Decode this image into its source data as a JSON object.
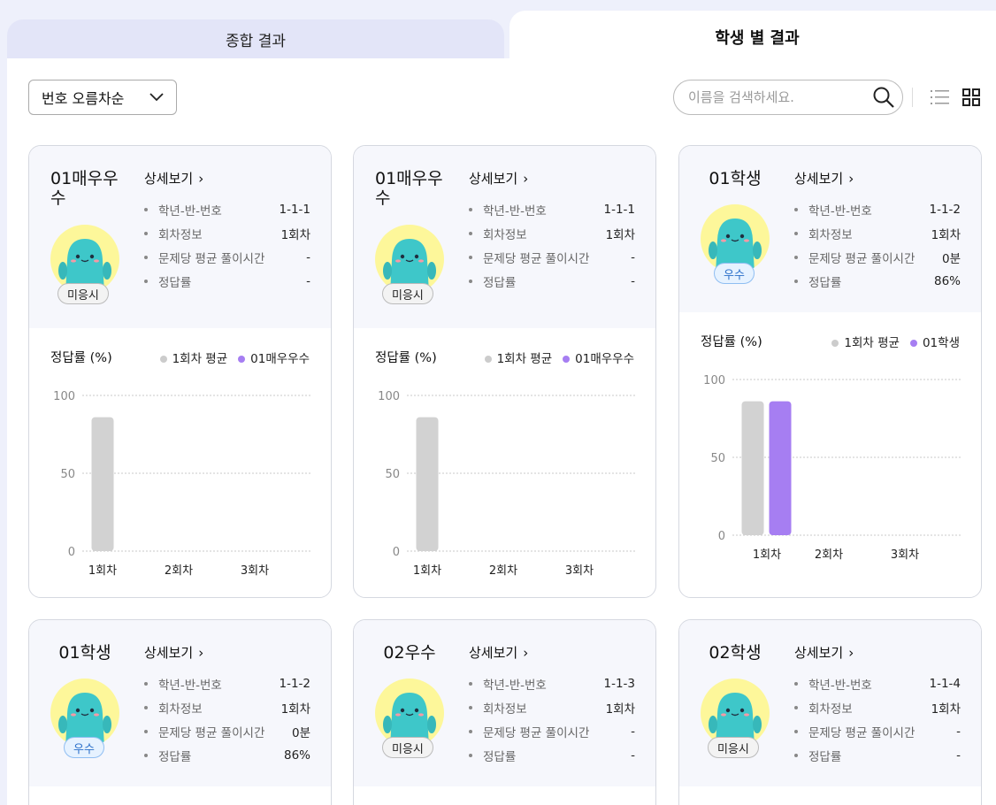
{
  "tabs": {
    "overall": "종합 결과",
    "student": "학생 별 결과"
  },
  "toolbar": {
    "sort_value": "번호 오름차순",
    "search_placeholder": "이름을 검색하세요."
  },
  "colors": {
    "avg_bar": "#d2d2d2",
    "student_bar": "#a67ef2",
    "avg_dot": "#cccccc",
    "student_dot": "#a67ef2"
  },
  "labels": {
    "detail": "상세보기",
    "k_class": "학년-반-번호",
    "k_round": "회차정보",
    "k_time": "문제당 평균 풀이시간",
    "k_rate": "정답률",
    "chart_title": "정답률 (%)",
    "legend_avg": "1회차 평균"
  },
  "cards": [
    {
      "name": "01매우우수",
      "badge": "미응시",
      "badge_type": "none",
      "class_no": "1-1-1",
      "round": "1회차",
      "time": "-",
      "rate": "-"
    },
    {
      "name": "01매우우수",
      "badge": "미응시",
      "badge_type": "none",
      "class_no": "1-1-1",
      "round": "1회차",
      "time": "-",
      "rate": "-"
    },
    {
      "name": "01학생",
      "badge": "우수",
      "badge_type": "good",
      "class_no": "1-1-2",
      "round": "1회차",
      "time": "0분",
      "rate": "86%"
    },
    {
      "name": "01학생",
      "badge": "우수",
      "badge_type": "good",
      "class_no": "1-1-2",
      "round": "1회차",
      "time": "0분",
      "rate": "86%"
    },
    {
      "name": "02우수",
      "badge": "미응시",
      "badge_type": "none",
      "class_no": "1-1-3",
      "round": "1회차",
      "time": "-",
      "rate": "-"
    },
    {
      "name": "02학생",
      "badge": "미응시",
      "badge_type": "none",
      "class_no": "1-1-4",
      "round": "1회차",
      "time": "-",
      "rate": "-"
    }
  ],
  "chart_data": [
    {
      "type": "bar",
      "title": "정답률 (%)",
      "categories": [
        "1회차",
        "2회차",
        "3회차"
      ],
      "ylim": [
        0,
        100
      ],
      "yticks": [
        0,
        50,
        100
      ],
      "series": [
        {
          "name": "1회차 평균",
          "values": [
            86,
            null,
            null
          ]
        },
        {
          "name": "01매우우수",
          "values": [
            null,
            null,
            null
          ]
        }
      ]
    },
    {
      "type": "bar",
      "title": "정답률 (%)",
      "categories": [
        "1회차",
        "2회차",
        "3회차"
      ],
      "ylim": [
        0,
        100
      ],
      "yticks": [
        0,
        50,
        100
      ],
      "series": [
        {
          "name": "1회차 평균",
          "values": [
            86,
            null,
            null
          ]
        },
        {
          "name": "01매우우수",
          "values": [
            null,
            null,
            null
          ]
        }
      ]
    },
    {
      "type": "bar",
      "title": "정답률 (%)",
      "categories": [
        "1회차",
        "2회차",
        "3회차"
      ],
      "ylim": [
        0,
        100
      ],
      "yticks": [
        0,
        50,
        100
      ],
      "series": [
        {
          "name": "1회차 평균",
          "values": [
            86,
            null,
            null
          ]
        },
        {
          "name": "01학생",
          "values": [
            86,
            null,
            null
          ]
        }
      ]
    }
  ]
}
